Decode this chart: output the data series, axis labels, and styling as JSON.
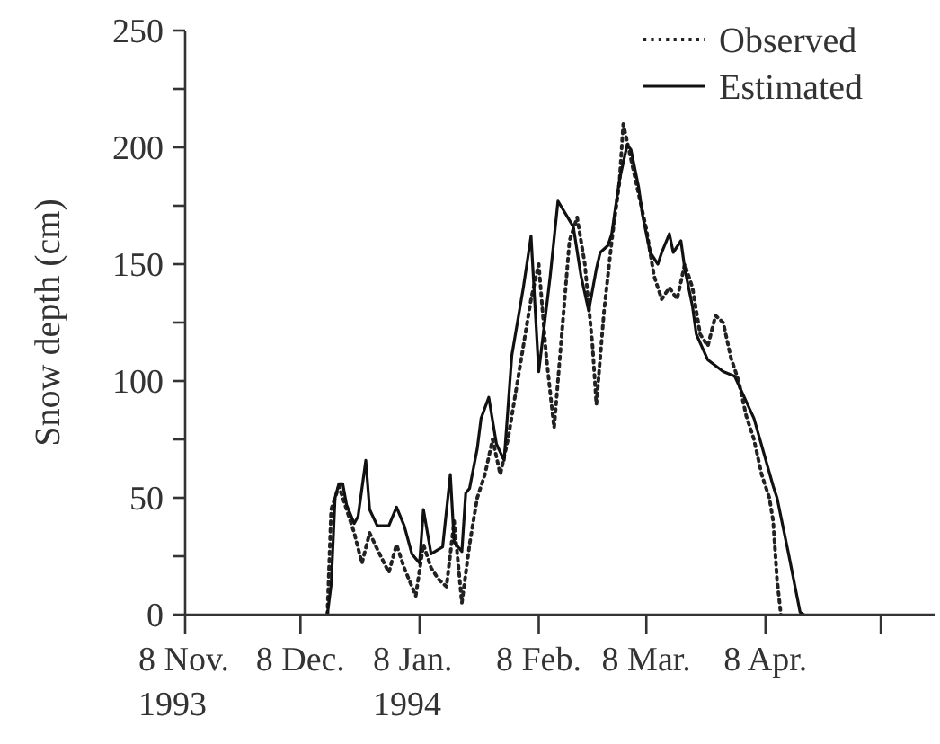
{
  "chart_data": {
    "type": "line",
    "ylabel": "Snow depth (cm)",
    "xlim": [
      "1993-11-08",
      "1994-05-22"
    ],
    "xticks": [
      {
        "value": "1993-11-08",
        "label": "8 Nov.\n1993"
      },
      {
        "value": "1993-12-08",
        "label": "8 Dec."
      },
      {
        "value": "1994-01-08",
        "label": "8 Jan.\n1994"
      },
      {
        "value": "1994-02-08",
        "label": "8 Feb."
      },
      {
        "value": "1994-03-08",
        "label": "8 Mar."
      },
      {
        "value": "1994-04-08",
        "label": "8 Apr."
      },
      {
        "value": "1994-05-08",
        "label": null
      }
    ],
    "ylim": [
      0,
      250
    ],
    "yticks": [
      0,
      {
        "value": 25,
        "label": null
      },
      50,
      {
        "value": 75,
        "label": null
      },
      100,
      {
        "value": 125,
        "label": null
      },
      150,
      {
        "value": 175,
        "label": null
      },
      200,
      {
        "value": 225,
        "label": null
      },
      250
    ],
    "grid": false,
    "legend": "top right",
    "series": [
      {
        "name": "Observed",
        "color": "#222222",
        "line_style": "dotted",
        "x": [
          "1993-12-15",
          "1993-12-16",
          "1993-12-18",
          "1993-12-20",
          "1993-12-22",
          "1993-12-24",
          "1993-12-26",
          "1993-12-28",
          "1993-12-31",
          "1994-01-02",
          "1994-01-04",
          "1994-01-07",
          "1994-01-09",
          "1994-01-11",
          "1994-01-13",
          "1994-01-15",
          "1994-01-17",
          "1994-01-19",
          "1994-01-21",
          "1994-01-23",
          "1994-01-25",
          "1994-01-27",
          "1994-01-29",
          "1994-01-31",
          "1994-02-02",
          "1994-02-04",
          "1994-02-06",
          "1994-02-08",
          "1994-02-10",
          "1994-02-12",
          "1994-02-14",
          "1994-02-16",
          "1994-02-18",
          "1994-02-20",
          "1994-02-22",
          "1994-02-23",
          "1994-02-25",
          "1994-02-27",
          "1994-03-01",
          "1994-03-02",
          "1994-03-04",
          "1994-03-06",
          "1994-03-08",
          "1994-03-10",
          "1994-03-12",
          "1994-03-14",
          "1994-03-16",
          "1994-03-18",
          "1994-03-20",
          "1994-03-22",
          "1994-03-24",
          "1994-03-26",
          "1994-03-28",
          "1994-03-30",
          "1994-04-01",
          "1994-04-03",
          "1994-04-05",
          "1994-04-07",
          "1994-04-09",
          "1994-04-10",
          "1994-04-11",
          "1994-04-12"
        ],
        "values": [
          0,
          45,
          55,
          45,
          35,
          22,
          35,
          28,
          18,
          30,
          20,
          8,
          30,
          20,
          15,
          12,
          40,
          5,
          30,
          50,
          60,
          75,
          60,
          75,
          95,
          115,
          135,
          150,
          110,
          80,
          120,
          160,
          170,
          150,
          115,
          90,
          130,
          160,
          185,
          210,
          195,
          180,
          165,
          145,
          135,
          140,
          135,
          150,
          140,
          120,
          115,
          128,
          125,
          110,
          100,
          85,
          75,
          60,
          50,
          40,
          15,
          0
        ]
      },
      {
        "name": "Estimated",
        "color": "#111111",
        "line_style": "solid",
        "x": [
          "1993-12-15",
          "1993-12-16",
          "1993-12-17",
          "1993-12-18",
          "1993-12-19",
          "1993-12-20",
          "1993-12-22",
          "1993-12-23",
          "1993-12-25",
          "1993-12-26",
          "1993-12-28",
          "1993-12-31",
          "1994-01-02",
          "1994-01-04",
          "1994-01-06",
          "1994-01-08",
          "1994-01-09",
          "1994-01-11",
          "1994-01-14",
          "1994-01-16",
          "1994-01-17",
          "1994-01-19",
          "1994-01-20",
          "1994-01-21",
          "1994-01-23",
          "1994-01-24",
          "1994-01-26",
          "1994-01-28",
          "1994-01-30",
          "1994-02-01",
          "1994-02-04",
          "1994-02-06",
          "1994-02-08",
          "1994-02-11",
          "1994-02-13",
          "1994-02-17",
          "1994-02-19",
          "1994-02-21",
          "1994-02-23",
          "1994-02-24",
          "1994-02-26",
          "1994-02-27",
          "1994-03-01",
          "1994-03-03",
          "1994-03-04",
          "1994-03-06",
          "1994-03-07",
          "1994-03-09",
          "1994-03-11",
          "1994-03-12",
          "1994-03-14",
          "1994-03-15",
          "1994-03-17",
          "1994-03-18",
          "1994-03-20",
          "1994-03-21",
          "1994-03-24",
          "1994-03-28",
          "1994-03-31",
          "1994-04-05",
          "1994-04-10",
          "1994-04-11",
          "1994-04-14",
          "1994-04-17",
          "1994-04-18"
        ],
        "values": [
          0,
          13,
          50,
          56,
          56,
          47,
          39,
          42,
          66,
          45,
          38,
          38,
          46,
          38,
          26,
          22,
          45,
          26,
          29,
          60,
          31,
          27,
          52,
          54,
          71,
          84,
          93,
          73,
          66,
          111,
          140,
          162,
          104,
          145,
          177,
          166,
          145,
          130,
          148,
          155,
          158,
          163,
          186,
          201,
          199,
          183,
          171,
          155,
          150,
          155,
          163,
          155,
          160,
          148,
          132,
          120,
          109,
          104,
          102,
          84,
          55,
          50,
          26,
          1,
          0
        ]
      }
    ]
  }
}
